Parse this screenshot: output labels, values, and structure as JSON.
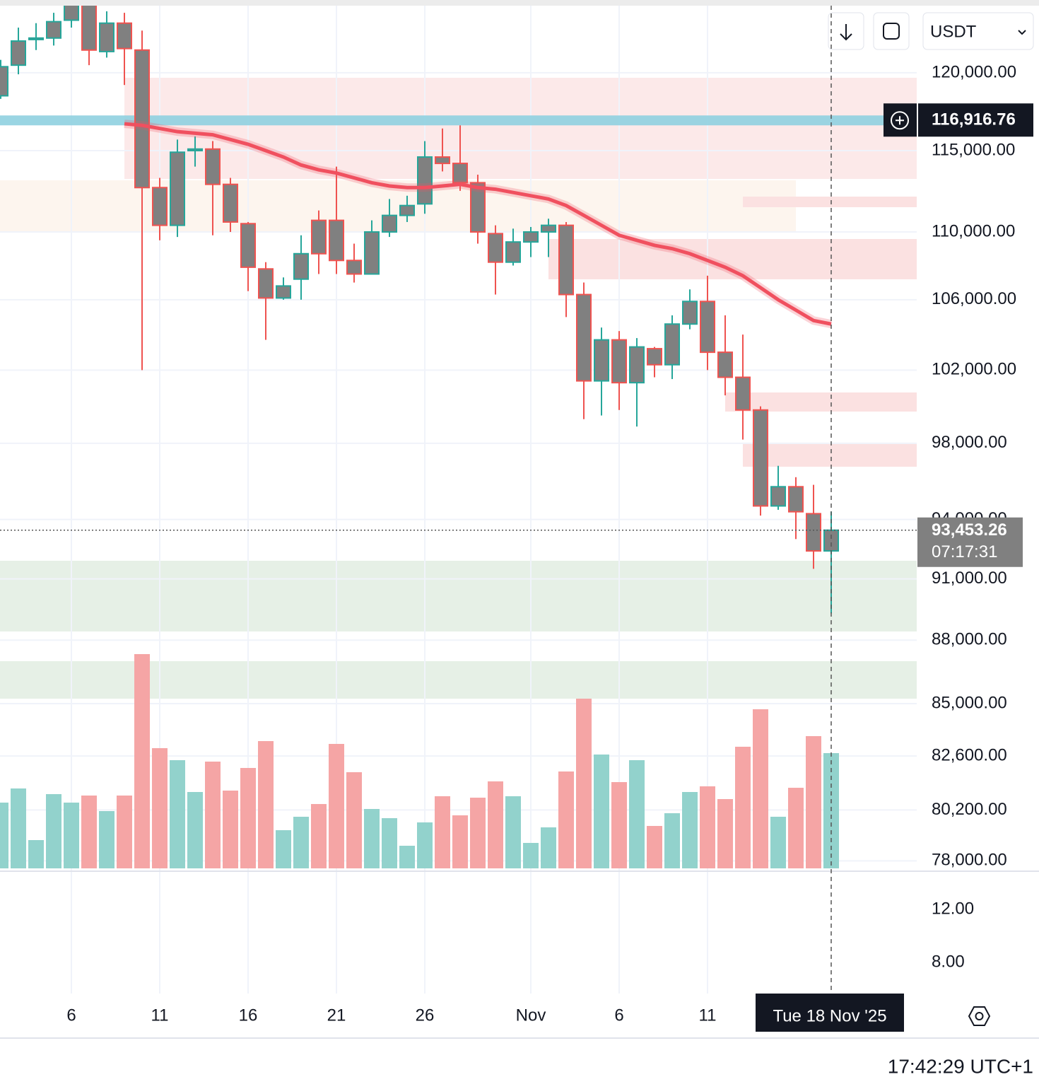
{
  "chart_data": {
    "type": "candlestick",
    "quote_currency": "USDT",
    "x": [
      "Oct 2",
      "Oct 3",
      "Oct 4",
      "Oct 5",
      "Oct 6",
      "Oct 7",
      "Oct 8",
      "Oct 9",
      "Oct 10",
      "Oct 11",
      "Oct 12",
      "Oct 13",
      "Oct 14",
      "Oct 15",
      "Oct 16",
      "Oct 17",
      "Oct 18",
      "Oct 19",
      "Oct 20",
      "Oct 21",
      "Oct 22",
      "Oct 23",
      "Oct 24",
      "Oct 25",
      "Oct 26",
      "Oct 27",
      "Oct 28",
      "Oct 29",
      "Oct 30",
      "Oct 31",
      "Nov 1",
      "Nov 2",
      "Nov 3",
      "Nov 4",
      "Nov 5",
      "Nov 6",
      "Nov 7",
      "Nov 8",
      "Nov 9",
      "Nov 10",
      "Nov 11",
      "Nov 12",
      "Nov 13",
      "Nov 14",
      "Nov 15",
      "Nov 16",
      "Nov 17",
      "Nov 18"
    ],
    "open": [
      118500,
      120500,
      122200,
      122300,
      123500,
      124800,
      121400,
      123300,
      121500,
      112700,
      110400,
      115000,
      115100,
      112900,
      110500,
      107800,
      106100,
      107200,
      110700,
      110700,
      108300,
      107500,
      110000,
      111000,
      111700,
      114600,
      114200,
      113000,
      109900,
      108200,
      109400,
      110000,
      110400,
      106300,
      101400,
      103700,
      101300,
      103200,
      102300,
      104600,
      105900,
      103000,
      101600,
      99800,
      94700,
      95700,
      94300,
      92400
    ],
    "high": [
      120850,
      123000,
      123300,
      124000,
      126000,
      126000,
      124100,
      124000,
      122800,
      113300,
      115700,
      115900,
      115600,
      113300,
      110600,
      108200,
      107300,
      109800,
      111300,
      114000,
      109300,
      110700,
      112000,
      112200,
      115600,
      116400,
      116600,
      113500,
      110400,
      110200,
      110300,
      110800,
      110600,
      107000,
      104400,
      104200,
      103800,
      103300,
      105100,
      106600,
      107400,
      105100,
      104000,
      100000,
      96800,
      96200,
      95800,
      94400
    ],
    "low": [
      118300,
      119900,
      121500,
      121800,
      123000,
      120500,
      121000,
      119200,
      102000,
      109500,
      109700,
      114000,
      109800,
      110000,
      106500,
      103700,
      106000,
      106000,
      107500,
      107500,
      107000,
      107500,
      109700,
      110600,
      111100,
      113700,
      112500,
      109300,
      106300,
      108000,
      108500,
      108500,
      105000,
      99300,
      99500,
      99800,
      98900,
      101600,
      101500,
      104300,
      102000,
      100600,
      98200,
      94200,
      94500,
      93000,
      91500,
      89300
    ],
    "close": [
      120400,
      122100,
      122300,
      123400,
      125000,
      121500,
      123300,
      121600,
      112700,
      110400,
      114900,
      115100,
      112900,
      110600,
      107900,
      106100,
      106800,
      108700,
      108700,
      108300,
      107500,
      110000,
      111000,
      111600,
      114600,
      114200,
      113000,
      110000,
      108200,
      109400,
      110000,
      110400,
      106300,
      101400,
      103700,
      101300,
      103300,
      102300,
      104600,
      105900,
      103000,
      101600,
      99800,
      94700,
      95700,
      94400,
      92400,
      93453.26
    ],
    "up_color": "#26a69a",
    "down_color": "#ef5350",
    "body_color": "#808080",
    "volume": [
      93,
      113,
      40,
      105,
      93,
      103,
      81,
      103,
      303,
      170,
      153,
      108,
      151,
      110,
      142,
      180,
      54,
      73,
      91,
      176,
      136,
      84,
      71,
      32,
      65,
      102,
      75,
      100,
      123,
      102,
      36,
      58,
      137,
      240,
      161,
      122,
      153,
      60,
      78,
      108,
      116,
      98,
      172,
      225,
      73,
      114,
      187,
      163
    ],
    "vlim": [
      0,
      320
    ],
    "volume_up_color": "#92d2cc",
    "volume_down_color": "#f5a5a5",
    "ma": [
      null,
      null,
      null,
      null,
      null,
      null,
      null,
      116700,
      116600,
      116400,
      116200,
      116100,
      116000,
      115700,
      115400,
      115000,
      114600,
      114100,
      113800,
      113600,
      113300,
      113000,
      112800,
      112700,
      112700,
      112800,
      112900,
      112700,
      112600,
      112400,
      112200,
      112000,
      111600,
      111000,
      110400,
      109800,
      109500,
      109200,
      109000,
      108700,
      108300,
      107900,
      107400,
      106700,
      106000,
      105400,
      104800,
      104600
    ],
    "ma_color": "#f0505f",
    "ylim": [
      77680,
      124870
    ],
    "log_scale": true,
    "grid": true,
    "yticks": [
      {
        "value": 120000,
        "label": "120,000.00"
      },
      {
        "value": 115000,
        "label": "115,000.00"
      },
      {
        "value": 110000,
        "label": "110,000.00"
      },
      {
        "value": 106000,
        "label": "106,000.00"
      },
      {
        "value": 102000,
        "label": "102,000.00"
      },
      {
        "value": 98000,
        "label": "98,000.00"
      },
      {
        "value": 94000,
        "label": "94,000.00"
      },
      {
        "value": 91000,
        "label": "91,000.00"
      },
      {
        "value": 88000,
        "label": "88,000.00"
      },
      {
        "value": 85000,
        "label": "85,000.00"
      },
      {
        "value": 82600,
        "label": "82,600.00"
      },
      {
        "value": 80200,
        "label": "80,200.00"
      },
      {
        "value": 78000,
        "label": "78,000.00"
      }
    ],
    "xticks": [
      {
        "value": "Oct 6",
        "label": "6"
      },
      {
        "value": "Oct 11",
        "label": "11"
      },
      {
        "value": "Oct 16",
        "label": "16"
      },
      {
        "value": "Oct 21",
        "label": "21"
      },
      {
        "value": "Oct 26",
        "label": "26"
      },
      {
        "value": "Nov 1",
        "label": "Nov"
      },
      {
        "value": "Nov 6",
        "label": "6"
      },
      {
        "value": "Nov 11",
        "label": "11"
      }
    ],
    "price_line": {
      "value": 116916.76,
      "label": "116,916.76",
      "color": "#8fd0e0"
    },
    "last_price": {
      "value": 93453.26,
      "label": "93,453.26",
      "countdown": "07:17:31"
    },
    "crosshair_date": "Tue 18 Nov '25",
    "indicator_ylim": [
      5.92,
      14.72
    ],
    "indicator_yticks": [
      {
        "value": 12,
        "label": "12.00"
      },
      {
        "value": 8,
        "label": "8.00"
      }
    ],
    "clock": "17:42:29 UTC+1"
  }
}
